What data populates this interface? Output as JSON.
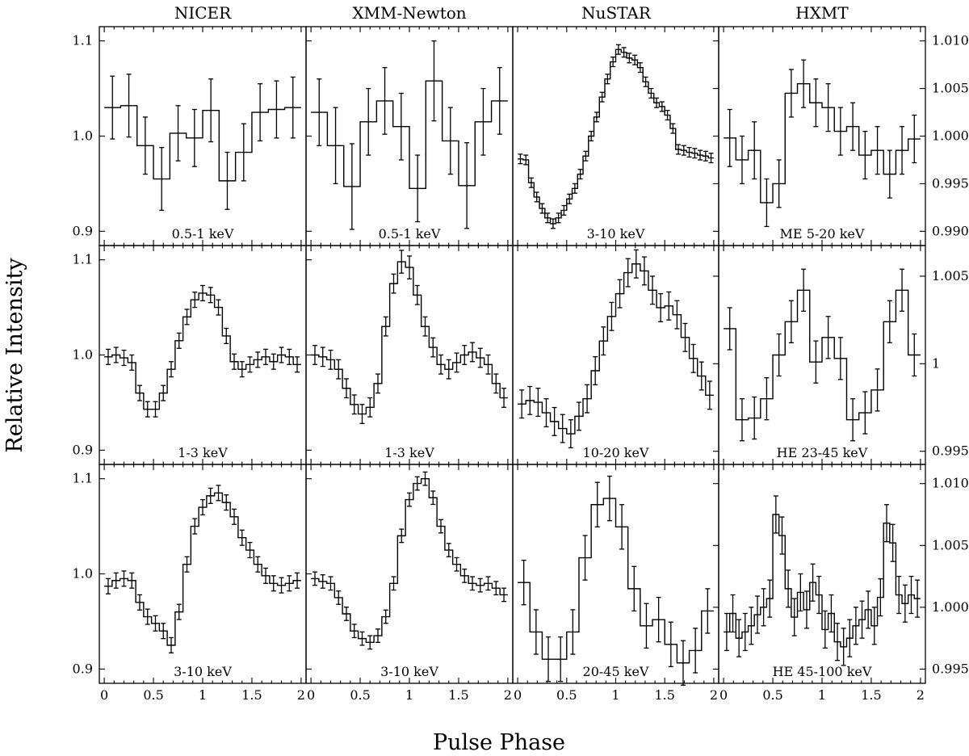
{
  "figure": {
    "ylabel": "Relative Intensity",
    "xlabel": "Pulse Phase",
    "columns": [
      "NICER",
      "XMM-Newton",
      "NuSTAR",
      "HXMT"
    ]
  },
  "chart_data": {
    "type": "line",
    "style": "step histogram with error bars, shared x axis, 3x4 panel grid",
    "x_range": [
      -0.05,
      2.05
    ],
    "x_ticks": [
      0,
      0.5,
      1,
      1.5,
      2
    ],
    "x_tick_labels": [
      "0",
      "0.5",
      "1",
      "1.5",
      "2"
    ],
    "left_y": {
      "range": [
        0.885,
        1.115
      ],
      "ticks": [
        0.9,
        1.0,
        1.1
      ],
      "tick_labels": [
        "0.9",
        "1.0",
        "1.1"
      ]
    },
    "right_y": [
      {
        "range": [
          0.9885,
          1.0115
        ],
        "ticks": [
          0.99,
          0.995,
          1.0,
          1.005,
          1.01
        ],
        "tick_labels": [
          "0.990",
          "0.995",
          "1.000",
          "1.005",
          "1.010"
        ]
      },
      {
        "range": [
          0.99425,
          1.00675
        ],
        "ticks": [
          0.995,
          1.0,
          1.005
        ],
        "tick_labels": [
          "0.995",
          "1",
          "1.005"
        ]
      },
      {
        "range": [
          0.99385,
          1.01155
        ],
        "ticks": [
          0.995,
          1.0,
          1.005,
          1.01
        ],
        "tick_labels": [
          "0.995",
          "1.000",
          "1.005",
          "1.010"
        ]
      }
    ],
    "panels": [
      {
        "column": "NICER",
        "row": 0,
        "band": "0.5-1 keV",
        "axis": "left",
        "values": [
          1.03,
          1.032,
          0.99,
          0.955,
          1.003,
          0.998,
          1.027,
          0.953,
          0.983,
          1.025,
          1.028,
          1.03
        ],
        "errors": [
          0.033,
          0.033,
          0.03,
          0.033,
          0.029,
          0.03,
          0.033,
          0.03,
          0.03,
          0.03,
          0.03,
          0.032
        ]
      },
      {
        "column": "XMM-Newton",
        "row": 0,
        "band": "0.5-1 keV",
        "axis": "left",
        "values": [
          1.025,
          0.99,
          0.947,
          1.015,
          1.037,
          1.01,
          0.945,
          1.058,
          0.995,
          0.948,
          1.015,
          1.037
        ],
        "errors": [
          0.035,
          0.04,
          0.045,
          0.035,
          0.035,
          0.035,
          0.035,
          0.042,
          0.035,
          0.045,
          0.035,
          0.035
        ]
      },
      {
        "column": "NuSTAR",
        "row": 0,
        "band": "3-10 keV",
        "axis": "right",
        "values": [
          0.9976,
          0.9975,
          0.9951,
          0.9936,
          0.9924,
          0.9914,
          0.9908,
          0.9914,
          0.9922,
          0.9934,
          0.9945,
          0.996,
          0.9979,
          1.0,
          1.002,
          1.0041,
          1.006,
          1.0078,
          1.0091,
          1.0088,
          1.0082,
          1.008,
          1.0072,
          1.0057,
          1.0045,
          1.0035,
          1.0031,
          1.0022,
          1.0008,
          0.9986,
          0.9985,
          0.9983,
          0.9982,
          0.998,
          0.9979,
          0.9977
        ],
        "errors": [
          0.0005,
          0.0005,
          0.0005,
          0.0005,
          0.0005,
          0.0005,
          0.0005,
          0.0005,
          0.0005,
          0.0005,
          0.0005,
          0.0005,
          0.0005,
          0.0005,
          0.0005,
          0.0005,
          0.0005,
          0.0005,
          0.0005,
          0.0005,
          0.0005,
          0.0005,
          0.0005,
          0.0005,
          0.0005,
          0.0005,
          0.0005,
          0.0005,
          0.0005,
          0.0005,
          0.0005,
          0.0005,
          0.0005,
          0.0005,
          0.0005,
          0.0005
        ]
      },
      {
        "column": "HXMT",
        "row": 0,
        "band": "ME 5-20 keV",
        "axis": "right",
        "values": [
          0.9998,
          0.9975,
          0.9985,
          0.993,
          0.995,
          1.0045,
          1.0055,
          1.0035,
          1.003,
          1.0005,
          1.001,
          0.998,
          0.9985,
          0.996,
          0.9985,
          0.9997
        ],
        "errors": [
          0.003,
          0.0025,
          0.003,
          0.0025,
          0.0025,
          0.0025,
          0.0025,
          0.0025,
          0.0025,
          0.0025,
          0.0025,
          0.0025,
          0.0025,
          0.0025,
          0.0025,
          0.0025
        ]
      },
      {
        "column": "NICER",
        "row": 1,
        "band": "1-3 keV",
        "axis": "left",
        "values": [
          0.998,
          1.0,
          0.997,
          0.992,
          0.96,
          0.943,
          0.943,
          0.96,
          0.985,
          1.015,
          1.04,
          1.058,
          1.065,
          1.063,
          1.05,
          1.02,
          0.993,
          0.985,
          0.99,
          0.995,
          0.998,
          0.993,
          1.0,
          0.998,
          0.99
        ],
        "errors": [
          0.008,
          0.008,
          0.008,
          0.008,
          0.008,
          0.008,
          0.008,
          0.008,
          0.008,
          0.008,
          0.008,
          0.008,
          0.008,
          0.008,
          0.008,
          0.008,
          0.008,
          0.008,
          0.008,
          0.008,
          0.008,
          0.008,
          0.008,
          0.008,
          0.008
        ]
      },
      {
        "column": "XMM-Newton",
        "row": 1,
        "band": "1-3 keV",
        "axis": "left",
        "values": [
          1.0,
          0.998,
          0.995,
          0.985,
          0.965,
          0.948,
          0.938,
          0.945,
          0.97,
          1.03,
          1.075,
          1.098,
          1.092,
          1.063,
          1.03,
          1.008,
          0.99,
          0.985,
          0.992,
          1.0,
          1.003,
          0.997,
          0.99,
          0.97,
          0.955
        ],
        "errors": [
          0.01,
          0.01,
          0.01,
          0.01,
          0.01,
          0.01,
          0.01,
          0.01,
          0.01,
          0.01,
          0.01,
          0.012,
          0.012,
          0.01,
          0.01,
          0.01,
          0.01,
          0.01,
          0.01,
          0.01,
          0.01,
          0.01,
          0.01,
          0.01,
          0.01
        ]
      },
      {
        "column": "NuSTAR",
        "row": 1,
        "band": "10-20 keV",
        "axis": "right",
        "values": [
          0.9977,
          0.9979,
          0.9978,
          0.9972,
          0.9967,
          0.9963,
          0.996,
          0.997,
          0.998,
          0.9996,
          1.0013,
          1.0027,
          1.004,
          1.0052,
          1.0057,
          1.0053,
          1.0042,
          1.0032,
          1.0033,
          1.0028,
          1.0015,
          1.0003,
          0.9993,
          0.9982
        ],
        "errors": [
          0.0008,
          0.0008,
          0.0008,
          0.0008,
          0.0008,
          0.0008,
          0.0008,
          0.0008,
          0.0008,
          0.0008,
          0.0008,
          0.0008,
          0.0008,
          0.0008,
          0.0008,
          0.0008,
          0.0008,
          0.0008,
          0.0008,
          0.0008,
          0.0008,
          0.0008,
          0.0008,
          0.0008
        ]
      },
      {
        "column": "HXMT",
        "row": 1,
        "band": "HE 23-45 keV",
        "axis": "right",
        "values": [
          1.002,
          0.9968,
          0.9969,
          0.998,
          1.0005,
          1.0024,
          1.0042,
          1.0001,
          1.0015,
          1.0003,
          0.9968,
          0.9972,
          0.9985,
          1.0024,
          1.0042,
          1.0005
        ],
        "errors": [
          0.0012,
          0.0012,
          0.0012,
          0.0012,
          0.0012,
          0.0012,
          0.0012,
          0.0012,
          0.0012,
          0.0012,
          0.0012,
          0.0012,
          0.0012,
          0.0012,
          0.0012,
          0.0012
        ]
      },
      {
        "column": "NICER",
        "row": 2,
        "band": "3-10 keV",
        "axis": "left",
        "values": [
          0.987,
          0.993,
          0.995,
          0.993,
          0.97,
          0.955,
          0.948,
          0.94,
          0.925,
          0.96,
          1.01,
          1.05,
          1.07,
          1.082,
          1.085,
          1.075,
          1.06,
          1.038,
          1.025,
          1.01,
          0.998,
          0.99,
          0.988,
          0.99,
          0.993
        ],
        "errors": [
          0.008,
          0.008,
          0.008,
          0.008,
          0.008,
          0.008,
          0.008,
          0.008,
          0.008,
          0.008,
          0.008,
          0.008,
          0.008,
          0.008,
          0.008,
          0.008,
          0.008,
          0.008,
          0.008,
          0.008,
          0.008,
          0.008,
          0.008,
          0.008,
          0.008
        ]
      },
      {
        "column": "XMM-Newton",
        "row": 2,
        "band": "3-10 keV",
        "axis": "left",
        "values": [
          0.995,
          0.992,
          0.99,
          0.975,
          0.958,
          0.94,
          0.932,
          0.928,
          0.935,
          0.955,
          0.99,
          1.04,
          1.078,
          1.095,
          1.1,
          1.08,
          1.05,
          1.025,
          1.01,
          0.998,
          0.99,
          0.988,
          0.99,
          0.985,
          0.978
        ],
        "errors": [
          0.007,
          0.007,
          0.007,
          0.007,
          0.007,
          0.007,
          0.007,
          0.007,
          0.007,
          0.007,
          0.007,
          0.007,
          0.007,
          0.007,
          0.007,
          0.007,
          0.007,
          0.007,
          0.007,
          0.007,
          0.007,
          0.007,
          0.007,
          0.007,
          0.007
        ]
      },
      {
        "column": "NuSTAR",
        "row": 2,
        "band": "20-45 keV",
        "axis": "right",
        "values": [
          1.002,
          0.998,
          0.9958,
          0.9958,
          0.998,
          1.004,
          1.0083,
          1.0088,
          1.0065,
          1.0015,
          0.9985,
          0.999,
          0.997,
          0.9955,
          0.9965,
          0.9997
        ],
        "errors": [
          0.0018,
          0.0018,
          0.0018,
          0.0018,
          0.0018,
          0.0018,
          0.0018,
          0.0018,
          0.0018,
          0.0018,
          0.0018,
          0.0018,
          0.0018,
          0.0018,
          0.0018,
          0.0018
        ]
      },
      {
        "column": "HXMT",
        "row": 2,
        "band": "HE 45-100 keV",
        "axis": "right",
        "values": [
          0.998,
          0.9995,
          0.9975,
          0.998,
          0.9985,
          0.9994,
          1.0,
          1.0007,
          1.0075,
          1.0058,
          1.0015,
          0.9992,
          1.0012,
          0.9998,
          1.002,
          1.001,
          0.9982,
          0.9995,
          0.9972,
          0.9968,
          0.9975,
          0.9985,
          0.999,
          0.9998,
          0.9985,
          1.0008,
          1.0068,
          1.0052,
          1.001,
          1.0003,
          1.001,
          1.0007
        ],
        "errors": [
          0.0015,
          0.0015,
          0.0015,
          0.0015,
          0.0015,
          0.0015,
          0.0015,
          0.0015,
          0.0015,
          0.0015,
          0.0015,
          0.0015,
          0.0015,
          0.0015,
          0.0015,
          0.0015,
          0.0015,
          0.0015,
          0.0015,
          0.0015,
          0.0015,
          0.0015,
          0.0015,
          0.0015,
          0.0015,
          0.0015,
          0.0015,
          0.0015,
          0.0015,
          0.0015,
          0.0015,
          0.0015
        ]
      }
    ]
  }
}
